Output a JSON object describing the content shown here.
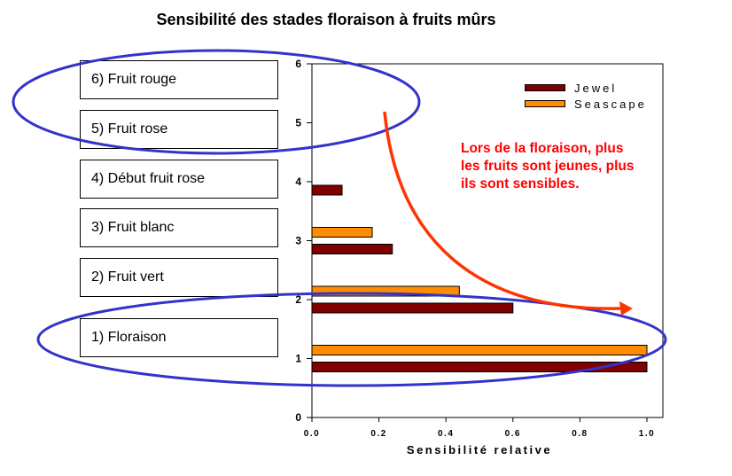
{
  "title": "Sensibilité des stades floraison à fruits mûrs",
  "stages": [
    "6) Fruit rouge",
    "5) Fruit rose",
    "4) Début fruit rose",
    "3) Fruit blanc",
    "2) Fruit vert",
    "1) Floraison"
  ],
  "annotation": "Lors de la floraison, plus les fruits sont jeunes, plus ils sont sensibles.",
  "colors": {
    "jewel": "#800000",
    "seascape": "#ff8c00",
    "highlight_ellipse": "#3333cc",
    "arrow": "#ff3300",
    "annotation_text": "#ff0000"
  },
  "chart_data": {
    "type": "bar",
    "orientation": "horizontal",
    "title": "Sensibilité des stades floraison à fruits mûrs",
    "xlabel": "Sensibilité relative",
    "ylabel": "",
    "xlim": [
      0,
      1.05
    ],
    "ylim": [
      0,
      6
    ],
    "x_ticks": [
      "0.0",
      "0.2",
      "0.4",
      "0.6",
      "0.8",
      "1.0"
    ],
    "y_ticks": [
      "0",
      "1",
      "2",
      "3",
      "4",
      "5",
      "6"
    ],
    "categories": [
      1,
      2,
      3,
      4
    ],
    "series": [
      {
        "name": "Jewel",
        "color": "#800000",
        "values": [
          1.0,
          0.6,
          0.24,
          0.09
        ]
      },
      {
        "name": "Seascape",
        "color": "#ff8c00",
        "values": [
          1.0,
          0.44,
          0.18,
          null
        ]
      }
    ],
    "legend_position": "top-right",
    "grid": false
  }
}
